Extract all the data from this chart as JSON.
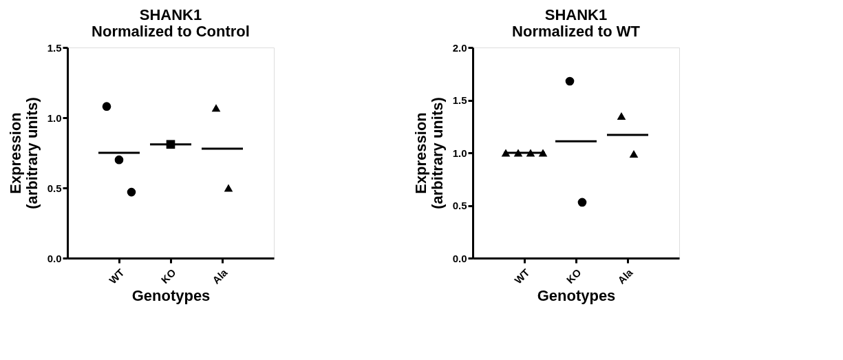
{
  "chart_data": [
    {
      "type": "scatter",
      "title": "SHANK1\nNormalized to Control",
      "xlabel": "Genotypes",
      "ylabel": "Expression\n(arbitrary units)",
      "categories": [
        "WT",
        "KO",
        "Ala"
      ],
      "ylim": [
        0,
        1.5
      ],
      "yticks": [
        {
          "value": 0,
          "label": "0.0"
        },
        {
          "value": 0.5,
          "label": "0.5"
        },
        {
          "value": 1,
          "label": "1.0"
        },
        {
          "value": 1.5,
          "label": "1.5"
        }
      ],
      "grid": false,
      "legend": false,
      "series": [
        {
          "marker": "circle",
          "color": "#000000",
          "x": [
            "WT",
            "WT",
            "WT"
          ],
          "values": [
            1.08,
            0.7,
            0.47
          ]
        },
        {
          "marker": "square",
          "color": "#000000",
          "x": [
            "KO"
          ],
          "values": [
            0.81
          ]
        },
        {
          "type": "scatter",
          "marker": "triangle",
          "color": "#000000",
          "x": [
            "Ala",
            "Ala"
          ],
          "values": [
            1.07,
            0.5
          ]
        }
      ],
      "ref_lines": [
        {
          "axis": "y",
          "value": 0.75,
          "color": "#000000"
        },
        {
          "axis": "y",
          "value": 0.81,
          "color": "#000000"
        },
        {
          "axis": "y",
          "value": 0.78,
          "color": "#000000"
        }
      ]
    },
    {
      "type": "scatter",
      "title": "SHANK1\nNormalized to WT",
      "xlabel": "Genotypes",
      "ylabel": "Expression\n(arbitrary units)",
      "categories": [
        "WT",
        "KO",
        "Ala"
      ],
      "ylim": [
        0,
        2.0
      ],
      "yticks": [
        {
          "value": 0,
          "label": "0.0"
        },
        {
          "value": 0.5,
          "label": "0.5"
        },
        {
          "value": 1,
          "label": "1.0"
        },
        {
          "value": 1.5,
          "label": "1.5"
        },
        {
          "value": 2,
          "label": "2.0"
        }
      ],
      "grid": false,
      "legend": false,
      "series": [
        {
          "type": "scatter",
          "marker": "triangle",
          "color": "#000000",
          "x": [
            "WT",
            "WT",
            "WT",
            "WT"
          ],
          "values": [
            1.0,
            1.0,
            1.0,
            1.0
          ]
        },
        {
          "type": "scatter",
          "marker": "circle",
          "color": "#000000",
          "x": [
            "KO",
            "KO"
          ],
          "values": [
            1.68,
            0.53
          ]
        },
        {
          "type": "scatter",
          "marker": "triangle",
          "color": "#000000",
          "x": [
            "Ala",
            "Ala"
          ],
          "values": [
            1.35,
            0.99
          ]
        }
      ],
      "ref_lines": [
        {
          "axis": "y",
          "value": 1.0,
          "color": "#000000"
        },
        {
          "axis": "y",
          "value": 1.11,
          "color": "#000000"
        },
        {
          "axis": "y",
          "value": 1.17,
          "color": "#000000"
        }
      ]
    }
  ]
}
